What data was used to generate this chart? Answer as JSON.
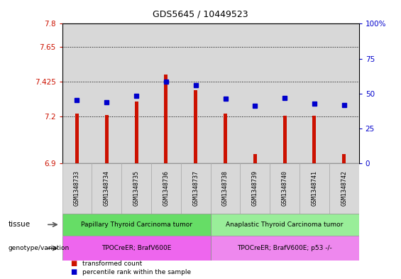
{
  "title": "GDS5645 / 10449523",
  "samples": [
    "GSM1348733",
    "GSM1348734",
    "GSM1348735",
    "GSM1348736",
    "GSM1348737",
    "GSM1348738",
    "GSM1348739",
    "GSM1348740",
    "GSM1348741",
    "GSM1348742"
  ],
  "bar_values": [
    7.22,
    7.21,
    7.3,
    7.47,
    7.37,
    7.22,
    6.96,
    7.205,
    7.205,
    6.96
  ],
  "dot_values": [
    7.305,
    7.295,
    7.335,
    7.425,
    7.405,
    7.315,
    7.27,
    7.32,
    7.285,
    7.275
  ],
  "ylim": [
    6.9,
    7.8
  ],
  "yticks": [
    6.9,
    7.2,
    7.425,
    7.65,
    7.8
  ],
  "ytick_labels": [
    "6.9",
    "7.2",
    "7.425",
    "7.65",
    "7.8"
  ],
  "gridlines": [
    7.2,
    7.425,
    7.65
  ],
  "bar_baseline": 6.9,
  "bar_color": "#cc1100",
  "dot_color": "#0000cc",
  "right_yticks_pct": [
    0,
    25,
    50,
    75,
    100
  ],
  "right_ytick_labels": [
    "0",
    "25",
    "50",
    "75",
    "100%"
  ],
  "tissue_groups": [
    {
      "label": "Papillary Thyroid Carcinoma tumor",
      "start": 0,
      "end": 5,
      "color": "#66dd66"
    },
    {
      "label": "Anaplastic Thyroid Carcinoma tumor",
      "start": 5,
      "end": 10,
      "color": "#99ee99"
    }
  ],
  "genotype_groups": [
    {
      "label": "TPOCreER; BrafV600E",
      "start": 0,
      "end": 5,
      "color": "#ee66ee"
    },
    {
      "label": "TPOCreER; BrafV600E; p53 -/-",
      "start": 5,
      "end": 10,
      "color": "#ee88ee"
    }
  ],
  "legend_items": [
    {
      "color": "#cc1100",
      "label": "transformed count"
    },
    {
      "color": "#0000cc",
      "label": "percentile rank within the sample"
    }
  ],
  "tick_label_color_left": "#cc1100",
  "tick_label_color_right": "#0000cc",
  "plot_bg": "#ffffff",
  "col_bg": "#d8d8d8",
  "title_fontsize": 9
}
